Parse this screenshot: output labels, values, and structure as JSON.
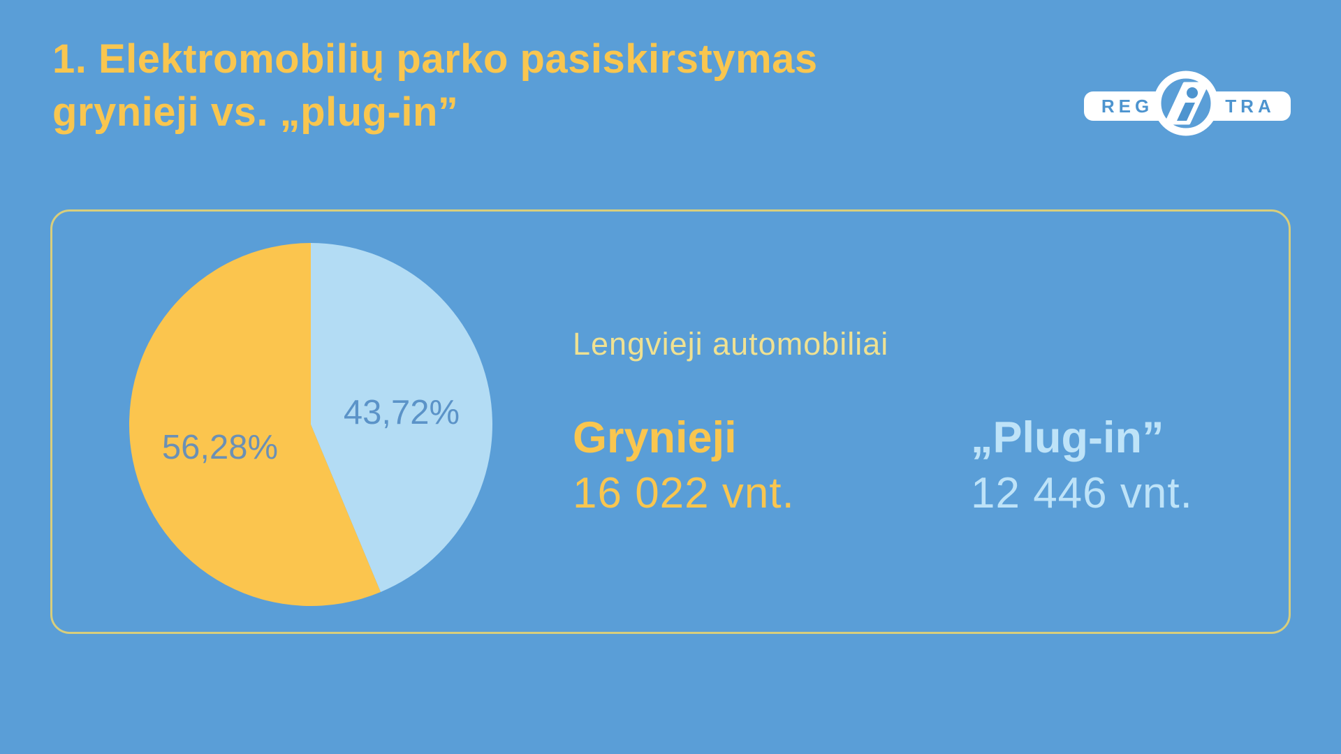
{
  "page": {
    "background_color": "#5A9ED7",
    "title_line1": "1. Elektromobilių parko pasiskirstymas",
    "title_line2": "grynieji vs. „plug-in”",
    "title_color": "#F9C64F"
  },
  "logo": {
    "left_text": "REG",
    "right_text": "TRA",
    "i_text": "i",
    "shape_color": "#FFFFFF",
    "letter_color": "#4D94CF"
  },
  "panel": {
    "border_color": "#D8CE7C"
  },
  "chart_data": {
    "type": "pie",
    "title": "Lengvieji automobiliai",
    "subtitle_color": "#EFE192",
    "start_angle_deg_from_top": 0,
    "direction": "clockwise",
    "legend_position": "right",
    "slices": [
      {
        "label": "Grynieji",
        "value_pct": 56.28,
        "pct_label": "56,28%",
        "count": 16022,
        "count_label": "16 022 vnt.",
        "color": "#FBC54E",
        "pct_label_color": "#6B90B5",
        "label_color": "#F9C64F"
      },
      {
        "label": "„Plug-in”",
        "value_pct": 43.72,
        "pct_label": "43,72%",
        "count": 12446,
        "count_label": "12 446 vnt.",
        "color": "#B3DCF4",
        "pct_label_color": "#5B93C8",
        "label_color": "#BEE3F8"
      }
    ]
  }
}
